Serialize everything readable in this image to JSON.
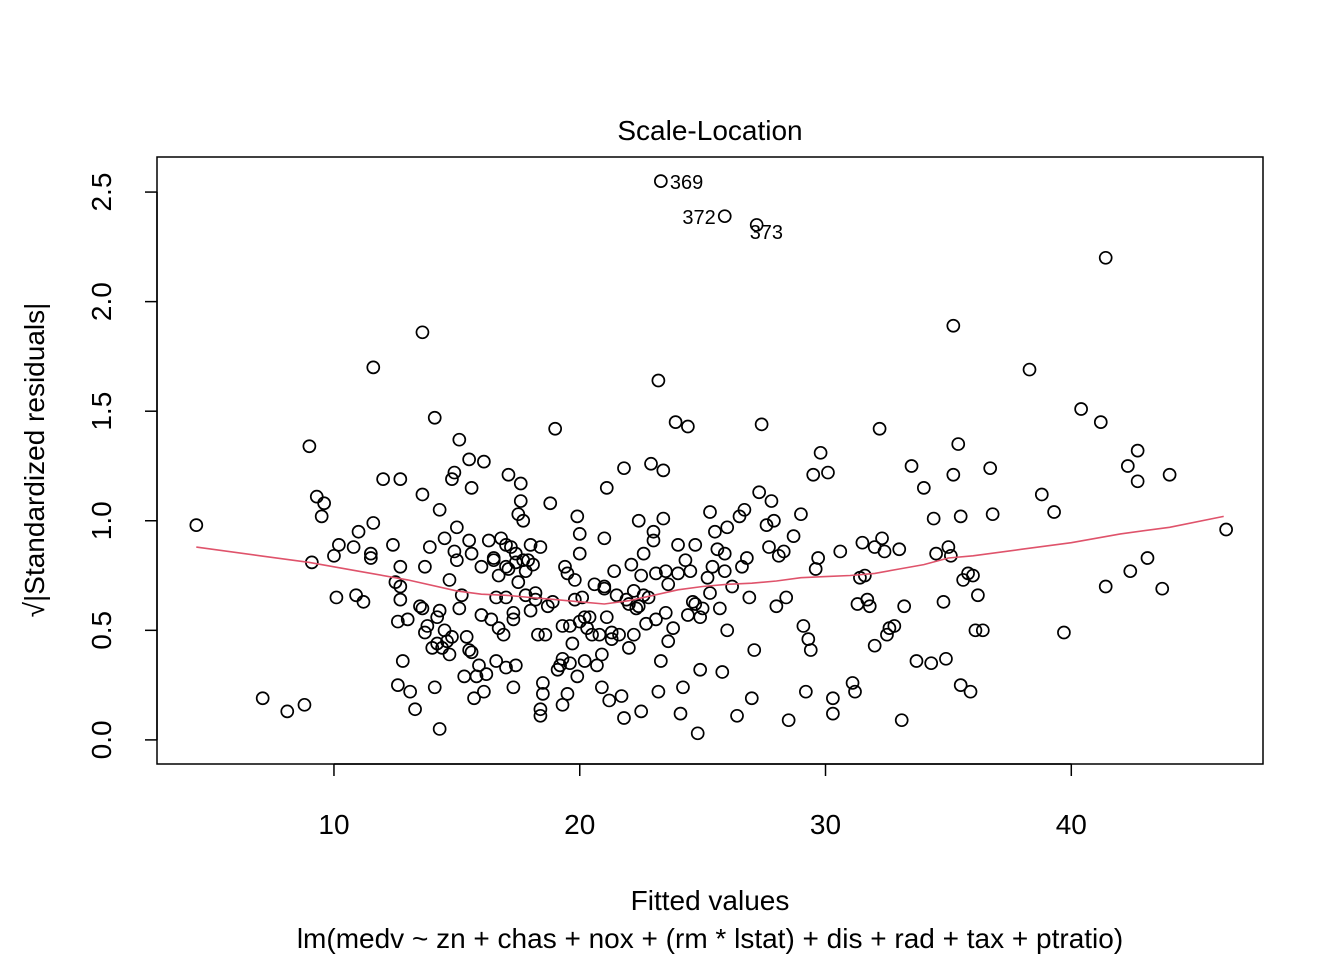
{
  "chart_data": {
    "type": "scatter",
    "title": "Scale-Location",
    "xlabel": "Fitted values",
    "ylabel_prefix": "√",
    "ylabel": "|Standardized residuals|",
    "subtitle": "lm(medv ~ zn + chas + nox + (rm * lstat) + dis + rad + tax + ptratio)",
    "xlim": [
      2.8,
      47.8
    ],
    "ylim": [
      -0.11,
      2.66
    ],
    "xticks": [
      10,
      20,
      30,
      40
    ],
    "yticks": [
      0.0,
      0.5,
      1.0,
      1.5,
      2.0,
      2.5
    ],
    "xtick_labels": [
      "10",
      "20",
      "30",
      "40"
    ],
    "ytick_labels": [
      "0.0",
      "0.5",
      "1.0",
      "1.5",
      "2.0",
      "2.5"
    ],
    "grid": false,
    "point_color": "#000000",
    "smooth_color": "#DF536B",
    "labeled_points": [
      {
        "x": 23.3,
        "y": 2.55,
        "label": "369"
      },
      {
        "x": 25.9,
        "y": 2.39,
        "label": "372"
      },
      {
        "x": 27.2,
        "y": 2.35,
        "label": "373"
      }
    ],
    "points": [
      [
        4.4,
        0.98
      ],
      [
        7.1,
        0.19
      ],
      [
        8.1,
        0.13
      ],
      [
        8.8,
        0.16
      ],
      [
        9.0,
        1.34
      ],
      [
        9.1,
        0.81
      ],
      [
        9.3,
        1.11
      ],
      [
        9.5,
        1.02
      ],
      [
        9.6,
        1.08
      ],
      [
        10.0,
        0.84
      ],
      [
        10.1,
        0.65
      ],
      [
        10.2,
        0.89
      ],
      [
        10.8,
        0.88
      ],
      [
        10.9,
        0.66
      ],
      [
        11.0,
        0.95
      ],
      [
        11.2,
        0.63
      ],
      [
        11.5,
        0.85
      ],
      [
        11.5,
        0.83
      ],
      [
        11.6,
        0.99
      ],
      [
        11.6,
        1.7
      ],
      [
        12.0,
        1.19
      ],
      [
        12.4,
        0.89
      ],
      [
        12.5,
        0.72
      ],
      [
        12.6,
        0.25
      ],
      [
        12.6,
        0.54
      ],
      [
        12.7,
        0.7
      ],
      [
        12.7,
        1.19
      ],
      [
        12.7,
        0.64
      ],
      [
        12.7,
        0.79
      ],
      [
        12.8,
        0.36
      ],
      [
        13.0,
        0.55
      ],
      [
        13.1,
        0.22
      ],
      [
        13.3,
        0.14
      ],
      [
        13.5,
        0.61
      ],
      [
        13.6,
        1.86
      ],
      [
        13.6,
        1.12
      ],
      [
        13.6,
        0.6
      ],
      [
        13.7,
        0.79
      ],
      [
        13.7,
        0.49
      ],
      [
        13.8,
        0.52
      ],
      [
        13.9,
        0.88
      ],
      [
        14.0,
        0.42
      ],
      [
        14.1,
        0.24
      ],
      [
        14.1,
        1.47
      ],
      [
        14.2,
        0.56
      ],
      [
        14.2,
        0.44
      ],
      [
        14.3,
        0.59
      ],
      [
        14.3,
        1.05
      ],
      [
        14.3,
        0.05
      ],
      [
        14.4,
        0.42
      ],
      [
        14.5,
        0.92
      ],
      [
        14.5,
        0.5
      ],
      [
        14.6,
        0.45
      ],
      [
        14.7,
        0.73
      ],
      [
        14.7,
        0.39
      ],
      [
        14.8,
        0.47
      ],
      [
        14.8,
        1.19
      ],
      [
        14.9,
        0.86
      ],
      [
        14.9,
        1.22
      ],
      [
        15.0,
        0.97
      ],
      [
        15.0,
        0.82
      ],
      [
        15.1,
        1.37
      ],
      [
        15.1,
        0.6
      ],
      [
        15.2,
        0.66
      ],
      [
        15.3,
        0.29
      ],
      [
        15.4,
        0.47
      ],
      [
        15.5,
        0.41
      ],
      [
        15.5,
        1.28
      ],
      [
        15.5,
        0.91
      ],
      [
        15.6,
        0.4
      ],
      [
        15.6,
        0.85
      ],
      [
        15.6,
        1.15
      ],
      [
        15.7,
        0.19
      ],
      [
        15.8,
        0.29
      ],
      [
        15.9,
        0.34
      ],
      [
        16.0,
        0.57
      ],
      [
        16.0,
        0.79
      ],
      [
        16.1,
        1.27
      ],
      [
        16.1,
        0.22
      ],
      [
        16.2,
        0.3
      ],
      [
        16.3,
        0.91
      ],
      [
        16.4,
        0.55
      ],
      [
        16.5,
        0.82
      ],
      [
        16.5,
        0.83
      ],
      [
        16.6,
        0.65
      ],
      [
        16.6,
        0.36
      ],
      [
        16.7,
        0.75
      ],
      [
        16.7,
        0.51
      ],
      [
        16.8,
        0.92
      ],
      [
        16.9,
        0.48
      ],
      [
        17.0,
        0.89
      ],
      [
        17.0,
        0.79
      ],
      [
        17.0,
        0.65
      ],
      [
        17.0,
        0.33
      ],
      [
        17.1,
        0.78
      ],
      [
        17.1,
        1.21
      ],
      [
        17.2,
        0.88
      ],
      [
        17.3,
        0.58
      ],
      [
        17.3,
        0.55
      ],
      [
        17.3,
        0.24
      ],
      [
        17.4,
        0.81
      ],
      [
        17.4,
        0.34
      ],
      [
        17.4,
        0.85
      ],
      [
        17.5,
        1.03
      ],
      [
        17.5,
        0.72
      ],
      [
        17.6,
        1.09
      ],
      [
        17.6,
        1.17
      ],
      [
        17.7,
        0.82
      ],
      [
        17.7,
        1.0
      ],
      [
        17.8,
        0.77
      ],
      [
        17.8,
        0.66
      ],
      [
        17.9,
        0.82
      ],
      [
        18.0,
        0.89
      ],
      [
        18.0,
        0.59
      ],
      [
        18.1,
        0.8
      ],
      [
        18.2,
        0.67
      ],
      [
        18.2,
        0.64
      ],
      [
        18.3,
        0.48
      ],
      [
        18.4,
        0.88
      ],
      [
        18.4,
        0.11
      ],
      [
        18.4,
        0.14
      ],
      [
        18.5,
        0.21
      ],
      [
        18.5,
        0.26
      ],
      [
        18.6,
        0.48
      ],
      [
        18.7,
        0.61
      ],
      [
        18.8,
        1.08
      ],
      [
        18.9,
        0.63
      ],
      [
        19.0,
        1.42
      ],
      [
        19.1,
        0.32
      ],
      [
        19.2,
        0.34
      ],
      [
        19.3,
        0.37
      ],
      [
        19.3,
        0.52
      ],
      [
        19.3,
        0.16
      ],
      [
        19.4,
        0.79
      ],
      [
        19.5,
        0.76
      ],
      [
        19.5,
        0.21
      ],
      [
        19.6,
        0.52
      ],
      [
        19.6,
        0.35
      ],
      [
        19.7,
        0.44
      ],
      [
        19.8,
        0.64
      ],
      [
        19.8,
        0.73
      ],
      [
        19.9,
        0.29
      ],
      [
        19.9,
        1.02
      ],
      [
        20.0,
        0.94
      ],
      [
        20.0,
        0.85
      ],
      [
        20.0,
        0.54
      ],
      [
        20.1,
        0.65
      ],
      [
        20.2,
        0.56
      ],
      [
        20.2,
        0.36
      ],
      [
        20.3,
        0.51
      ],
      [
        20.4,
        0.56
      ],
      [
        20.5,
        0.48
      ],
      [
        20.6,
        0.71
      ],
      [
        20.7,
        0.34
      ],
      [
        20.8,
        0.48
      ],
      [
        20.9,
        0.39
      ],
      [
        20.9,
        0.24
      ],
      [
        21.0,
        0.7
      ],
      [
        21.0,
        0.69
      ],
      [
        21.0,
        0.92
      ],
      [
        21.1,
        1.15
      ],
      [
        21.1,
        0.56
      ],
      [
        21.2,
        0.18
      ],
      [
        21.3,
        0.49
      ],
      [
        21.3,
        0.46
      ],
      [
        21.4,
        0.77
      ],
      [
        21.5,
        0.66
      ],
      [
        21.6,
        0.48
      ],
      [
        21.7,
        0.2
      ],
      [
        21.8,
        1.24
      ],
      [
        21.8,
        0.1
      ],
      [
        21.9,
        0.64
      ],
      [
        22.0,
        0.62
      ],
      [
        22.0,
        0.42
      ],
      [
        22.1,
        0.8
      ],
      [
        22.2,
        0.48
      ],
      [
        22.2,
        0.68
      ],
      [
        22.3,
        0.6
      ],
      [
        22.4,
        0.61
      ],
      [
        22.4,
        1.0
      ],
      [
        22.5,
        0.75
      ],
      [
        22.5,
        0.13
      ],
      [
        22.6,
        0.85
      ],
      [
        22.6,
        0.66
      ],
      [
        22.7,
        0.53
      ],
      [
        22.8,
        0.65
      ],
      [
        22.9,
        1.26
      ],
      [
        23.0,
        0.91
      ],
      [
        23.0,
        0.95
      ],
      [
        23.1,
        0.76
      ],
      [
        23.1,
        0.55
      ],
      [
        23.2,
        1.64
      ],
      [
        23.2,
        0.22
      ],
      [
        23.3,
        0.36
      ],
      [
        23.4,
        1.01
      ],
      [
        23.4,
        1.23
      ],
      [
        23.5,
        0.58
      ],
      [
        23.5,
        0.77
      ],
      [
        23.6,
        0.45
      ],
      [
        23.6,
        0.71
      ],
      [
        23.8,
        0.51
      ],
      [
        23.9,
        1.45
      ],
      [
        24.0,
        0.76
      ],
      [
        24.0,
        0.89
      ],
      [
        24.1,
        0.12
      ],
      [
        24.2,
        0.24
      ],
      [
        24.3,
        0.82
      ],
      [
        24.4,
        1.43
      ],
      [
        24.4,
        0.57
      ],
      [
        24.5,
        0.77
      ],
      [
        24.6,
        0.63
      ],
      [
        24.7,
        0.62
      ],
      [
        24.7,
        0.89
      ],
      [
        24.8,
        0.03
      ],
      [
        24.9,
        0.56
      ],
      [
        24.9,
        0.32
      ],
      [
        25.0,
        0.6
      ],
      [
        25.2,
        0.74
      ],
      [
        25.3,
        1.04
      ],
      [
        25.3,
        0.67
      ],
      [
        25.4,
        0.79
      ],
      [
        25.5,
        0.95
      ],
      [
        25.6,
        0.87
      ],
      [
        25.7,
        0.6
      ],
      [
        25.8,
        0.31
      ],
      [
        25.9,
        0.85
      ],
      [
        25.9,
        0.77
      ],
      [
        26.0,
        0.5
      ],
      [
        26.0,
        0.97
      ],
      [
        26.2,
        0.7
      ],
      [
        26.4,
        0.11
      ],
      [
        26.5,
        1.02
      ],
      [
        26.6,
        0.79
      ],
      [
        26.7,
        1.05
      ],
      [
        26.8,
        0.83
      ],
      [
        26.9,
        0.65
      ],
      [
        27.0,
        0.19
      ],
      [
        27.1,
        0.41
      ],
      [
        27.3,
        1.13
      ],
      [
        27.4,
        1.44
      ],
      [
        27.6,
        0.98
      ],
      [
        27.7,
        0.88
      ],
      [
        27.8,
        1.09
      ],
      [
        27.9,
        1.0
      ],
      [
        28.0,
        0.61
      ],
      [
        28.1,
        0.84
      ],
      [
        28.3,
        0.86
      ],
      [
        28.4,
        0.65
      ],
      [
        28.5,
        0.09
      ],
      [
        28.7,
        0.93
      ],
      [
        29.0,
        1.03
      ],
      [
        29.1,
        0.52
      ],
      [
        29.2,
        0.22
      ],
      [
        29.3,
        0.46
      ],
      [
        29.4,
        0.41
      ],
      [
        29.5,
        1.21
      ],
      [
        29.6,
        0.78
      ],
      [
        29.7,
        0.83
      ],
      [
        29.8,
        1.31
      ],
      [
        30.1,
        1.22
      ],
      [
        30.3,
        0.12
      ],
      [
        30.3,
        0.19
      ],
      [
        30.6,
        0.86
      ],
      [
        31.1,
        0.26
      ],
      [
        31.2,
        0.22
      ],
      [
        31.3,
        0.62
      ],
      [
        31.4,
        0.74
      ],
      [
        31.5,
        0.9
      ],
      [
        31.6,
        0.75
      ],
      [
        31.7,
        0.64
      ],
      [
        31.8,
        0.61
      ],
      [
        32.0,
        0.88
      ],
      [
        32.0,
        0.43
      ],
      [
        32.2,
        1.42
      ],
      [
        32.3,
        0.92
      ],
      [
        32.4,
        0.86
      ],
      [
        32.5,
        0.48
      ],
      [
        32.6,
        0.51
      ],
      [
        32.8,
        0.52
      ],
      [
        33.0,
        0.87
      ],
      [
        33.1,
        0.09
      ],
      [
        33.2,
        0.61
      ],
      [
        33.5,
        1.25
      ],
      [
        33.7,
        0.36
      ],
      [
        34.0,
        1.15
      ],
      [
        34.3,
        0.35
      ],
      [
        34.4,
        1.01
      ],
      [
        34.5,
        0.85
      ],
      [
        34.8,
        0.63
      ],
      [
        34.9,
        0.37
      ],
      [
        35.0,
        0.88
      ],
      [
        35.1,
        0.84
      ],
      [
        35.2,
        1.89
      ],
      [
        35.2,
        1.21
      ],
      [
        35.4,
        1.35
      ],
      [
        35.5,
        1.02
      ],
      [
        35.5,
        0.25
      ],
      [
        35.6,
        0.73
      ],
      [
        35.8,
        0.76
      ],
      [
        35.9,
        0.22
      ],
      [
        36.0,
        0.75
      ],
      [
        36.1,
        0.5
      ],
      [
        36.2,
        0.66
      ],
      [
        36.4,
        0.5
      ],
      [
        36.7,
        1.24
      ],
      [
        36.8,
        1.03
      ],
      [
        38.3,
        1.69
      ],
      [
        38.8,
        1.12
      ],
      [
        39.3,
        1.04
      ],
      [
        39.7,
        0.49
      ],
      [
        40.4,
        1.51
      ],
      [
        41.2,
        1.45
      ],
      [
        41.4,
        2.2
      ],
      [
        41.4,
        0.7
      ],
      [
        42.3,
        1.25
      ],
      [
        42.4,
        0.77
      ],
      [
        42.7,
        1.18
      ],
      [
        42.7,
        1.32
      ],
      [
        43.1,
        0.83
      ],
      [
        43.7,
        0.69
      ],
      [
        44.0,
        1.21
      ],
      [
        46.3,
        0.96
      ]
    ],
    "smooth": [
      [
        4.4,
        0.88
      ],
      [
        7.0,
        0.84
      ],
      [
        9.0,
        0.81
      ],
      [
        11.0,
        0.77
      ],
      [
        13.0,
        0.73
      ],
      [
        15.0,
        0.68
      ],
      [
        16.0,
        0.665
      ],
      [
        17.0,
        0.66
      ],
      [
        18.0,
        0.65
      ],
      [
        19.0,
        0.64
      ],
      [
        20.0,
        0.63
      ],
      [
        21.0,
        0.62
      ],
      [
        22.0,
        0.635
      ],
      [
        23.0,
        0.66
      ],
      [
        24.0,
        0.685
      ],
      [
        25.0,
        0.7
      ],
      [
        26.0,
        0.71
      ],
      [
        27.0,
        0.715
      ],
      [
        28.0,
        0.725
      ],
      [
        29.0,
        0.74
      ],
      [
        30.0,
        0.745
      ],
      [
        31.0,
        0.75
      ],
      [
        32.0,
        0.76
      ],
      [
        33.0,
        0.78
      ],
      [
        34.0,
        0.8
      ],
      [
        35.0,
        0.83
      ],
      [
        36.0,
        0.84
      ],
      [
        38.0,
        0.87
      ],
      [
        40.0,
        0.9
      ],
      [
        42.0,
        0.94
      ],
      [
        44.0,
        0.97
      ],
      [
        46.2,
        1.02
      ]
    ]
  }
}
